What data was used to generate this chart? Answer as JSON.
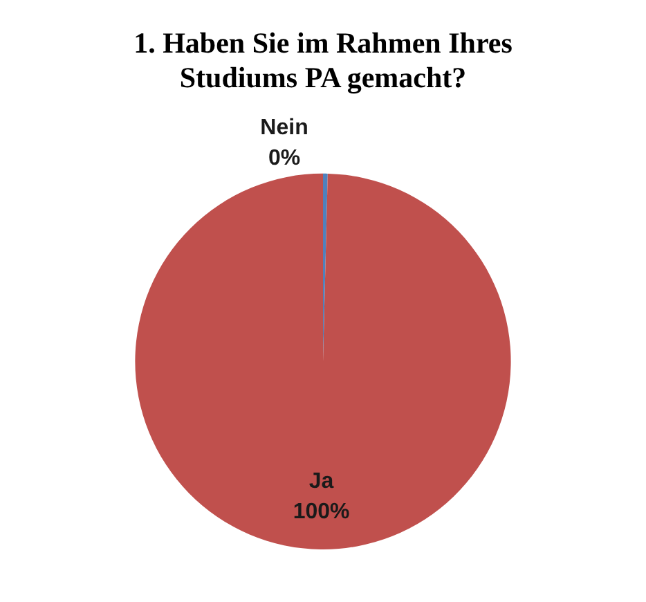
{
  "chart_data": {
    "type": "pie",
    "title": "1. Haben Sie im Rahmen Ihres Studiums PA gemacht?",
    "categories": [
      "Nein",
      "Ja"
    ],
    "values": [
      0.4,
      99.6
    ],
    "colors": [
      "#4f81bd",
      "#c0504d"
    ],
    "value_labels": [
      "0%",
      "100%"
    ],
    "legend": false
  }
}
